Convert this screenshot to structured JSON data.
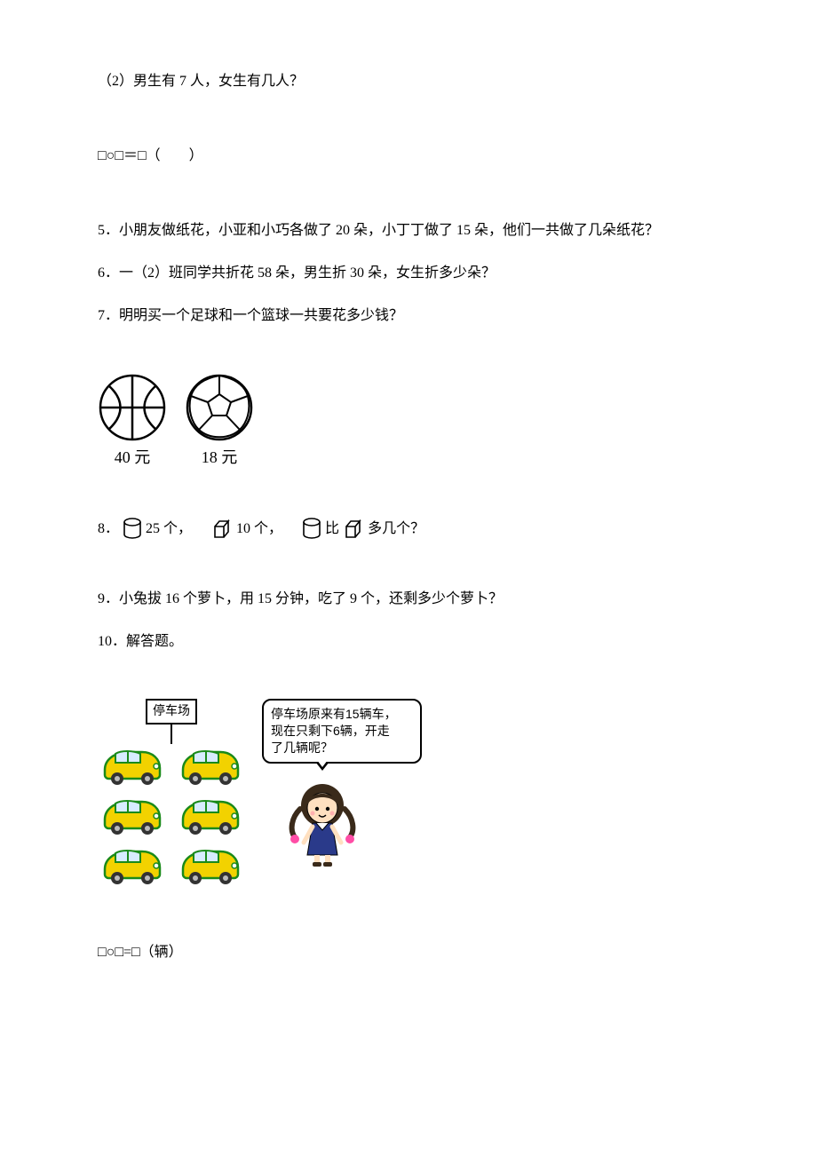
{
  "q2": {
    "text": "（2）男生有 7 人，女生有几人？",
    "formula": "□○□＝□（　　）"
  },
  "q5": {
    "label": "5．",
    "text": "小朋友做纸花，小亚和小巧各做了 20 朵，小丁丁做了 15 朵，他们一共做了几朵纸花？"
  },
  "q6": {
    "label": "6．",
    "text": "一（2）班同学共折花 58 朵，男生折 30 朵，女生折多少朵？"
  },
  "q7": {
    "label": "7．",
    "text": "明明买一个足球和一个篮球一共要花多少钱？",
    "ball1_price": "40 元",
    "ball2_price": "18 元",
    "stroke": "#000000"
  },
  "q8": {
    "label": "8．",
    "cyl_count": "25 个，",
    "cube_count": "10 个，",
    "mid": "比",
    "tail": "多几个？",
    "stroke": "#000000"
  },
  "q9": {
    "label": "9．",
    "text": "小兔拔 16 个萝卜，用 15 分钟，吃了 9 个，还剩多少个萝卜？"
  },
  "q10": {
    "label": "10．",
    "text": "解答题。",
    "sign": "停车场",
    "bubble_l1": "停车场原来有15辆车，",
    "bubble_l2": "现在只剩下6辆，开走",
    "bubble_l3": "了几辆呢？",
    "formula": "□○□=□（辆）",
    "car_body": "#f2d200",
    "car_outline": "#1a8a1a",
    "car_window": "#d7ecff",
    "car_wheel": "#333333",
    "girl_hair": "#3a2a1a",
    "girl_skin": "#ffe0c0",
    "girl_dress": "#2a3a8a",
    "girl_bow": "#ff4da6",
    "girl_stroke": "#000000"
  }
}
